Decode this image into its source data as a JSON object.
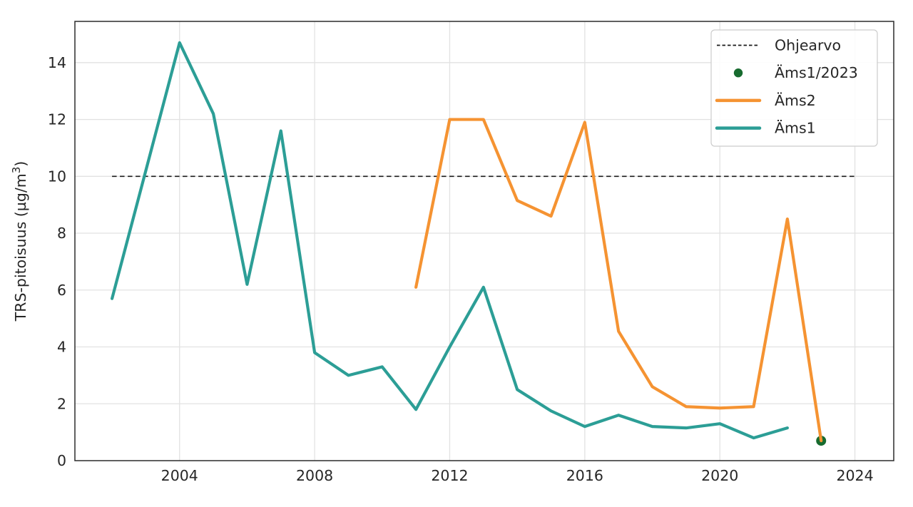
{
  "chart_data": {
    "type": "line",
    "title": "",
    "xlabel": "",
    "ylabel": "TRS-pitoisuus (µg/m³)",
    "xlim": [
      2000.9,
      2025.15
    ],
    "ylim": [
      0,
      15.45
    ],
    "x_ticks": [
      2004,
      2008,
      2012,
      2016,
      2020,
      2024
    ],
    "y_ticks": [
      0,
      2,
      4,
      6,
      8,
      10,
      12,
      14
    ],
    "grid": true,
    "legend_position": "upper right",
    "guideline": {
      "label": "Ohjearvo",
      "value": 10,
      "x_start": 2002,
      "x_end": 2024,
      "style": "dashed",
      "color": "#1a1a1a"
    },
    "marker_series": {
      "label": "Äms1/2023",
      "x": 2023,
      "y": 0.7,
      "color": "#176B2F"
    },
    "series": [
      {
        "name": "Äms2",
        "color": "#F59332",
        "points": [
          [
            2011,
            6.1
          ],
          [
            2012,
            12.0
          ],
          [
            2013,
            12.0
          ],
          [
            2014,
            9.15
          ],
          [
            2015,
            8.6
          ],
          [
            2016,
            11.9
          ],
          [
            2017,
            4.55
          ],
          [
            2018,
            2.6
          ],
          [
            2019,
            1.9
          ],
          [
            2020,
            1.85
          ],
          [
            2021,
            1.9
          ],
          [
            2022,
            8.5
          ],
          [
            2023,
            0.7
          ]
        ]
      },
      {
        "name": "Äms1",
        "color": "#2C9E96",
        "points": [
          [
            2002,
            5.7
          ],
          [
            2003,
            10.2
          ],
          [
            2004,
            14.7
          ],
          [
            2005,
            12.2
          ],
          [
            2006,
            6.2
          ],
          [
            2007,
            11.6
          ],
          [
            2008,
            3.8
          ],
          [
            2009,
            3.0
          ],
          [
            2010,
            3.3
          ],
          [
            2011,
            1.8
          ],
          [
            2012,
            4.0
          ],
          [
            2013,
            6.1
          ],
          [
            2014,
            2.5
          ],
          [
            2015,
            1.75
          ],
          [
            2016,
            1.2
          ],
          [
            2017,
            1.6
          ],
          [
            2018,
            1.2
          ],
          [
            2019,
            1.15
          ],
          [
            2020,
            1.3
          ],
          [
            2021,
            0.8
          ],
          [
            2022,
            1.15
          ]
        ]
      }
    ],
    "legend": {
      "entries": [
        {
          "label": "Ohjearvo",
          "swatch": "dashed-line",
          "color": "#1a1a1a"
        },
        {
          "label": "Äms1/2023",
          "swatch": "dot",
          "color": "#176B2F"
        },
        {
          "label": "Äms2",
          "swatch": "line",
          "color": "#F59332"
        },
        {
          "label": "Äms1",
          "swatch": "line",
          "color": "#2C9E96"
        }
      ]
    },
    "style_colors": {
      "grid": "#e2e2e2",
      "spine": "#2b2b2b",
      "text": "#262626",
      "legend_border": "#cccccc",
      "background": "#ffffff"
    }
  }
}
